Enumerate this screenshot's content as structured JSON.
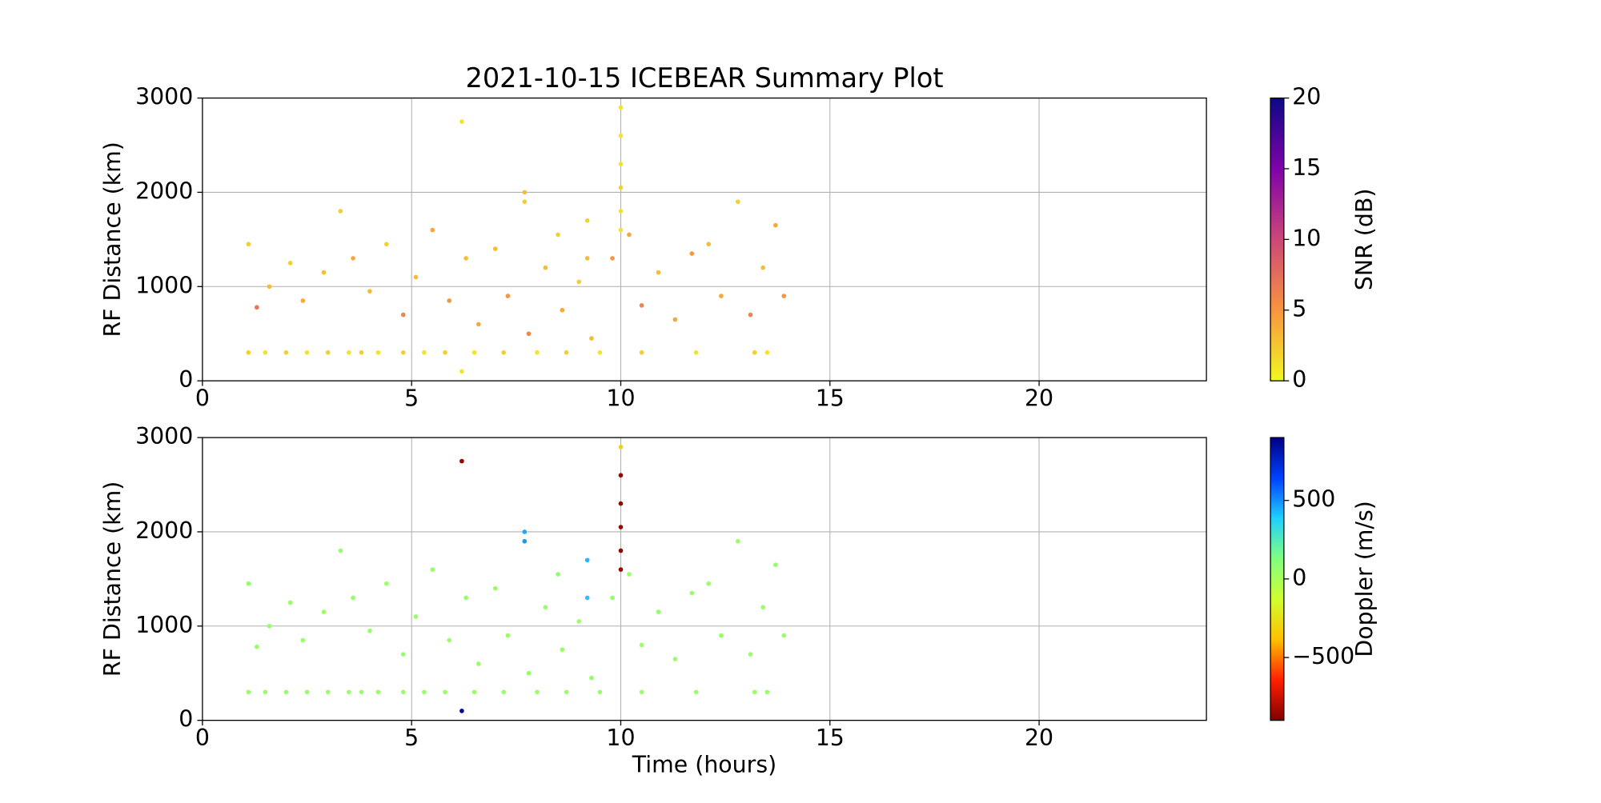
{
  "chart_data": [
    {
      "type": "scatter",
      "title": "2021-10-15 ICEBEAR Summary Plot",
      "y_label": "RF Distance (km)",
      "colorbar_label": "SNR (dB)",
      "xlim": [
        0,
        24
      ],
      "xticks": [
        0,
        5,
        10,
        15,
        20
      ],
      "ylim": [
        0,
        3000
      ],
      "yticks": [
        0,
        1000,
        2000,
        3000
      ],
      "grid": true,
      "clim": [
        0,
        20
      ],
      "cticks": [
        0,
        5,
        10,
        15,
        20
      ],
      "cmap": [
        "#f0f921",
        "#f89540",
        "#cc4778",
        "#7e03a8",
        "#0d0887"
      ],
      "x": [
        1.1,
        1.5,
        2.0,
        2.5,
        3.0,
        3.5,
        3.8,
        4.2,
        4.8,
        5.3,
        5.8,
        6.5,
        7.2,
        8.0,
        8.7,
        9.5,
        10.5,
        11.8,
        13.2,
        13.5,
        1.1,
        1.3,
        1.6,
        2.1,
        2.4,
        2.9,
        3.3,
        3.6,
        4.0,
        4.4,
        4.8,
        5.1,
        5.5,
        5.9,
        6.3,
        6.6,
        7.0,
        7.3,
        7.8,
        8.2,
        8.6,
        9.0,
        9.3,
        9.8,
        10.2,
        10.5,
        10.9,
        11.3,
        11.7,
        12.1,
        12.4,
        12.8,
        13.1,
        13.4,
        13.7,
        13.9,
        7.7,
        7.7,
        9.2,
        9.2,
        8.5,
        6.2,
        6.2,
        10.0,
        10.0,
        10.0,
        10.0,
        10.0,
        10.0
      ],
      "y": [
        300,
        300,
        300,
        300,
        300,
        300,
        300,
        300,
        300,
        300,
        300,
        300,
        300,
        300,
        300,
        300,
        300,
        300,
        300,
        300,
        1450,
        780,
        1000,
        1250,
        850,
        1150,
        1800,
        1300,
        950,
        1450,
        700,
        1100,
        1600,
        850,
        1300,
        600,
        1400,
        900,
        500,
        1200,
        750,
        1050,
        450,
        1300,
        1550,
        800,
        1150,
        650,
        1350,
        1450,
        900,
        1900,
        700,
        1200,
        1650,
        900,
        2000,
        1900,
        1700,
        1300,
        1550,
        2750,
        100,
        2900,
        2600,
        2300,
        2050,
        1800,
        1600
      ],
      "c": [
        2,
        1,
        2,
        1,
        2,
        1,
        2,
        1,
        2,
        1,
        2,
        1,
        2,
        1,
        2,
        1,
        2,
        1,
        2,
        1,
        2,
        7,
        3,
        2,
        4,
        3,
        2,
        4,
        3,
        2,
        6,
        3,
        4,
        5,
        3,
        4,
        3,
        5,
        6,
        3,
        4,
        2,
        3,
        5,
        4,
        6,
        3,
        4,
        5,
        3,
        4,
        2,
        6,
        3,
        4,
        5,
        3,
        2,
        2,
        3,
        2,
        1,
        1,
        1,
        1,
        1,
        2,
        1,
        1
      ]
    },
    {
      "type": "scatter",
      "x_label": "Time (hours)",
      "y_label": "RF Distance (km)",
      "colorbar_label": "Doppler (m/s)",
      "xlim": [
        0,
        24
      ],
      "xticks": [
        0,
        5,
        10,
        15,
        20
      ],
      "ylim": [
        0,
        3000
      ],
      "yticks": [
        0,
        1000,
        2000,
        3000
      ],
      "grid": true,
      "clim": [
        -900,
        900
      ],
      "cticks": [
        {
          "value": -500,
          "label": "−500"
        },
        0,
        500
      ],
      "cmap": [
        "#800000",
        "#ff2000",
        "#ffc000",
        "#d0ff30",
        "#80ff80",
        "#20d0ff",
        "#0040ff",
        "#000080"
      ],
      "x": [
        1.1,
        1.5,
        2.0,
        2.5,
        3.0,
        3.5,
        3.8,
        4.2,
        4.8,
        5.3,
        5.8,
        6.5,
        7.2,
        8.0,
        8.7,
        9.5,
        10.5,
        11.8,
        13.2,
        13.5,
        1.1,
        1.3,
        1.6,
        2.1,
        2.4,
        2.9,
        3.3,
        3.6,
        4.0,
        4.4,
        4.8,
        5.1,
        5.5,
        5.9,
        6.3,
        6.6,
        7.0,
        7.3,
        7.8,
        8.2,
        8.6,
        9.0,
        9.3,
        9.8,
        10.2,
        10.5,
        10.9,
        11.3,
        11.7,
        12.1,
        12.4,
        12.8,
        13.1,
        13.4,
        13.7,
        13.9,
        7.7,
        7.7,
        9.2,
        9.2,
        8.5,
        6.2,
        6.2,
        10.0,
        10.0,
        10.0,
        10.0,
        10.0,
        10.0
      ],
      "y": [
        300,
        300,
        300,
        300,
        300,
        300,
        300,
        300,
        300,
        300,
        300,
        300,
        300,
        300,
        300,
        300,
        300,
        300,
        300,
        300,
        1450,
        780,
        1000,
        1250,
        850,
        1150,
        1800,
        1300,
        950,
        1450,
        700,
        1100,
        1600,
        850,
        1300,
        600,
        1400,
        900,
        500,
        1200,
        750,
        1050,
        450,
        1300,
        1550,
        800,
        1150,
        650,
        1350,
        1450,
        900,
        1900,
        700,
        1200,
        1650,
        900,
        2000,
        1900,
        1700,
        1300,
        1550,
        2750,
        100,
        2900,
        2600,
        2300,
        2050,
        1800,
        1600
      ],
      "c": [
        50,
        50,
        50,
        50,
        50,
        50,
        50,
        50,
        50,
        50,
        50,
        50,
        50,
        50,
        50,
        50,
        50,
        50,
        50,
        50,
        50,
        40,
        60,
        50,
        50,
        40,
        60,
        50,
        50,
        40,
        60,
        50,
        50,
        40,
        60,
        50,
        50,
        40,
        60,
        50,
        50,
        40,
        60,
        50,
        50,
        40,
        60,
        50,
        50,
        40,
        60,
        50,
        50,
        40,
        60,
        50,
        450,
        480,
        420,
        400,
        80,
        -850,
        850,
        -300,
        -850,
        -850,
        -850,
        -850,
        -850
      ]
    }
  ]
}
